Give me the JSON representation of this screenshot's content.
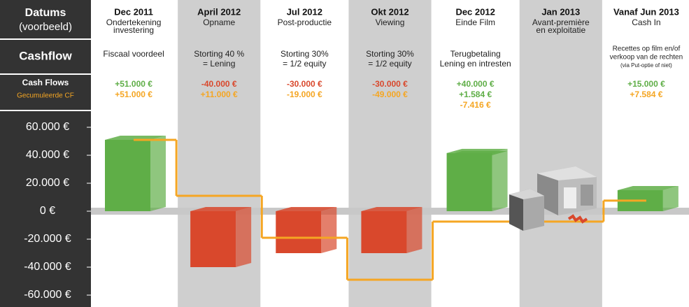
{
  "chart_data": {
    "type": "bar",
    "row_labels": {
      "dates": "Datums",
      "dates_note": "(voorbeeld)",
      "cashflow": "Cashflow"
    },
    "categories": [
      "Dec 2011",
      "April 2012",
      "Jul 2012",
      "Okt 2012",
      "Dec 2012",
      "Jan 2013",
      "Vanaf Jun 2013"
    ],
    "subtitles": [
      [
        "Ondertekening",
        "investering"
      ],
      [
        "Opname"
      ],
      [
        "Post-productie"
      ],
      [
        "Viewing"
      ],
      [
        "Einde Film"
      ],
      [
        "Avant-première",
        "en exploitatie"
      ],
      [
        "Cash In"
      ]
    ],
    "descriptions": [
      [
        "Fiscaal voordeel"
      ],
      [
        "Storting 40 %",
        "= Lening"
      ],
      [
        "Storting 30%",
        "= 1/2 equity"
      ],
      [
        "Storting 30%",
        "= 1/2 equity"
      ],
      [
        "Terugbetaling",
        "Lening en intresten"
      ],
      null,
      [
        "Recettes op film en/of",
        "verkoop van de rechten",
        "(via Put-optie of niet)"
      ]
    ],
    "series": [
      {
        "name": "Cash Flows",
        "values": [
          51000,
          -40000,
          -30000,
          -30000,
          40000,
          null,
          15000
        ],
        "value_labels": [
          "+51.000 €",
          "-40.000 €",
          "-30.000 €",
          "-30.000 €",
          "+40.000 €",
          null,
          "+15.000 €"
        ]
      },
      {
        "values": [
          null,
          null,
          null,
          null,
          1584,
          null,
          null
        ],
        "value_labels": [
          null,
          null,
          null,
          null,
          "+1.584 €",
          null,
          null
        ]
      },
      {
        "name": "Gecumuleerde CF",
        "type": "step",
        "color": "#f5a623",
        "values": [
          51000,
          11000,
          -19000,
          -49000,
          -7416,
          null,
          7584
        ],
        "value_labels": [
          "+51.000 €",
          "+11.000 €",
          "-19.000 €",
          "-49.000 €",
          "-7.416 €",
          null,
          "+7.584 €"
        ]
      }
    ],
    "positive_color": "#5fae47",
    "negative_color": "#d9482c",
    "ylim": [
      -68500,
      71000
    ],
    "yticks": [
      {
        "value": 60000,
        "label": "60.000 €"
      },
      {
        "value": 40000,
        "label": "40.000 €"
      },
      {
        "value": 20000,
        "label": "20.000 €"
      },
      {
        "value": 0,
        "label": "0 €"
      },
      {
        "value": -20000,
        "label": "-20.000 €"
      },
      {
        "value": -40000,
        "label": "-40.000 €"
      },
      {
        "value": -60000,
        "label": "-60.000 €"
      }
    ]
  }
}
